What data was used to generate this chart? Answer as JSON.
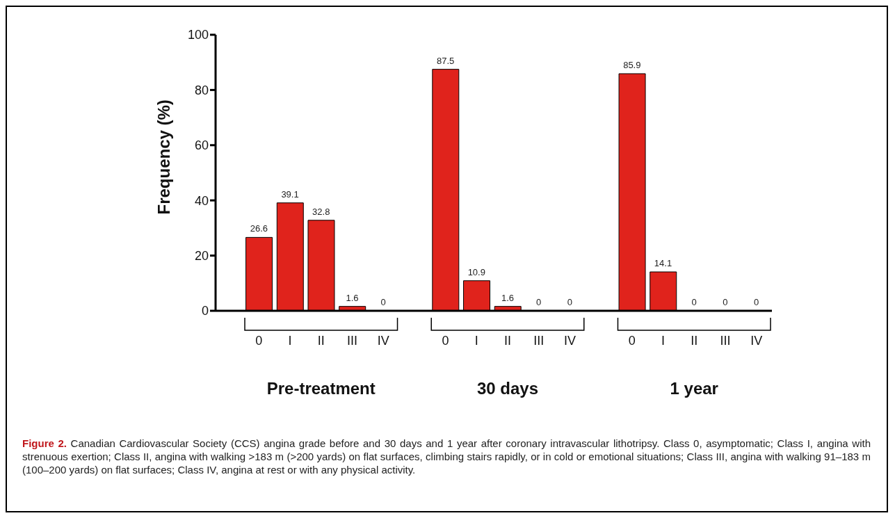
{
  "chart_data": {
    "type": "bar",
    "ylabel": "Frequency (%)",
    "categories": [
      "0",
      "I",
      "II",
      "III",
      "IV",
      null,
      "0",
      "I",
      "II",
      "III",
      "IV",
      null,
      "0",
      "I",
      "II",
      "III",
      "IV"
    ],
    "values": [
      26.6,
      39.1,
      32.8,
      1.6,
      0,
      null,
      87.5,
      10.9,
      1.6,
      0,
      0,
      null,
      85.9,
      14.1,
      0,
      0,
      0
    ],
    "color": "#e0231c",
    "ylim": [
      0,
      100
    ],
    "yticks": [
      0,
      20,
      40,
      60,
      80,
      100
    ],
    "grid": false,
    "legend": false,
    "data_labels": true,
    "annotations": [
      "Pre-treatment",
      "30 days",
      "1 year",
      "Figure 2. Canadian Cardiovascular Society (CCS) angina grade before and 30 days and 1 year after coronary intravascular lithotripsy. Class 0, asymptomatic; Class I, angina with strenuous exertion; Class II, angina with walking >183 m (>200 yards) on flat surfaces, climbing stairs rapidly, or in cold or emotional situations; Class III, angina with walking 91–183 m (100–200 yards) on flat surfaces; Class IV, angina at rest or with any physical activity."
    ]
  }
}
